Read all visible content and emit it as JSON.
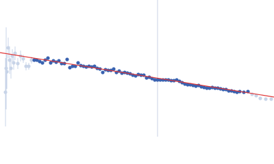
{
  "chart_data": {
    "type": "scatter",
    "xlim": [
      0,
      400
    ],
    "ylim": [
      0,
      200
    ],
    "vline": {
      "x": 230,
      "color": "#c8d2e6"
    },
    "series": [
      {
        "color": "#c8d4e8",
        "x": [
          8,
          9,
          10,
          12,
          14,
          16,
          18,
          20,
          22,
          26,
          30,
          34,
          38,
          42,
          46
        ],
        "values": [
          65,
          100,
          95,
          130,
          112,
          100,
          118,
          108,
          122,
          107,
          118,
          114,
          103,
          103,
          112
        ],
        "errors": [
          50,
          60,
          25,
          15,
          20,
          15,
          10,
          10,
          10,
          8,
          8,
          6,
          6,
          5,
          5
        ]
      },
      {
        "color": "#3a62b0",
        "x": [
          50,
          54,
          58,
          62,
          66,
          70,
          74,
          78,
          82,
          86,
          90,
          94,
          98,
          102,
          106,
          110,
          114,
          118,
          122,
          126,
          130,
          134,
          138,
          142,
          146,
          150,
          154,
          158,
          162,
          166,
          170,
          174,
          178,
          182,
          186,
          190,
          194,
          198,
          202,
          206,
          210,
          214,
          218,
          222,
          226,
          230,
          234,
          238,
          242,
          246,
          250,
          254,
          258,
          262,
          266,
          270,
          274,
          278,
          282,
          286,
          290,
          294,
          298,
          302,
          306,
          310,
          314,
          318,
          322,
          326,
          330,
          334,
          338,
          342,
          346,
          350,
          356,
          362
        ],
        "values": [
          112,
          112,
          110,
          108,
          112,
          115,
          108,
          111,
          109,
          111,
          107,
          107,
          113,
          101,
          103,
          103,
          108,
          104,
          103,
          102,
          103,
          102,
          103,
          100,
          99,
          94,
          98,
          97,
          97,
          99,
          94,
          96,
          93,
          94,
          93,
          92,
          90,
          89,
          91,
          90,
          90,
          86,
          87,
          85,
          83,
          83,
          83,
          83,
          83,
          83,
          82,
          82,
          83,
          81,
          79,
          77,
          76,
          76,
          75,
          74,
          75,
          73,
          72,
          71,
          71,
          72,
          71,
          71,
          70,
          69,
          69,
          67,
          67,
          66,
          65,
          66,
          65,
          66
        ]
      },
      {
        "color": "#c8d4e8",
        "x": [
          368,
          374,
          380,
          388,
          396
        ],
        "values": [
          62,
          60,
          56,
          55,
          55
        ]
      }
    ],
    "fit": {
      "color": "#e03535",
      "x": [
        0,
        400
      ],
      "values": [
        123,
        58
      ]
    }
  }
}
